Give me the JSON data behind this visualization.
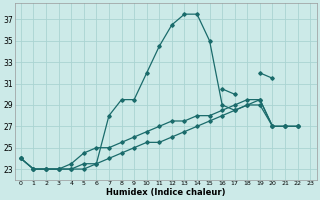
{
  "title": "",
  "xlabel": "Humidex (Indice chaleur)",
  "ylabel": "",
  "background_color": "#cceae8",
  "grid_color": "#aad4d2",
  "line_color": "#1a6b6b",
  "xlim": [
    -0.5,
    23.5
  ],
  "ylim": [
    22.0,
    38.5
  ],
  "xticks": [
    0,
    1,
    2,
    3,
    4,
    5,
    6,
    7,
    8,
    9,
    10,
    11,
    12,
    13,
    14,
    15,
    16,
    17,
    18,
    19,
    20,
    21,
    22,
    23
  ],
  "yticks": [
    23,
    25,
    27,
    29,
    31,
    33,
    35,
    37
  ],
  "series": [
    {
      "x": [
        0,
        1,
        2,
        3,
        4,
        5,
        6,
        7,
        8,
        9,
        10,
        11,
        12,
        13,
        14,
        15,
        16,
        17,
        18,
        19,
        20,
        21,
        22
      ],
      "y": [
        24.0,
        23.0,
        23.0,
        23.0,
        23.0,
        23.0,
        23.5,
        28.0,
        29.5,
        29.5,
        32.0,
        34.5,
        36.5,
        37.5,
        37.5,
        35.0,
        29.0,
        28.5,
        29.0,
        29.5,
        27.0,
        27.0,
        27.0
      ]
    },
    {
      "x": [
        16,
        17,
        19,
        20
      ],
      "y": [
        30.5,
        30.0,
        32.0,
        31.5
      ]
    },
    {
      "x": [
        0,
        1,
        2,
        3,
        4,
        5,
        6,
        7,
        8,
        9,
        10,
        11,
        12,
        13,
        14,
        15,
        16,
        17,
        18,
        19,
        20,
        21,
        22
      ],
      "y": [
        24.0,
        23.0,
        23.0,
        23.0,
        23.5,
        24.5,
        25.0,
        25.0,
        25.5,
        26.0,
        26.5,
        27.0,
        27.5,
        27.5,
        28.0,
        28.0,
        28.5,
        29.0,
        29.5,
        29.5,
        27.0,
        27.0,
        27.0
      ]
    },
    {
      "x": [
        0,
        1,
        2,
        3,
        4,
        5,
        6,
        7,
        8,
        9,
        10,
        11,
        12,
        13,
        14,
        15,
        16,
        17,
        18,
        19,
        20,
        21,
        22
      ],
      "y": [
        24.0,
        23.0,
        23.0,
        23.0,
        23.0,
        23.5,
        23.5,
        24.0,
        24.5,
        25.0,
        25.5,
        25.5,
        26.0,
        26.5,
        27.0,
        27.5,
        28.0,
        28.5,
        29.0,
        29.0,
        27.0,
        27.0,
        27.0
      ]
    }
  ]
}
